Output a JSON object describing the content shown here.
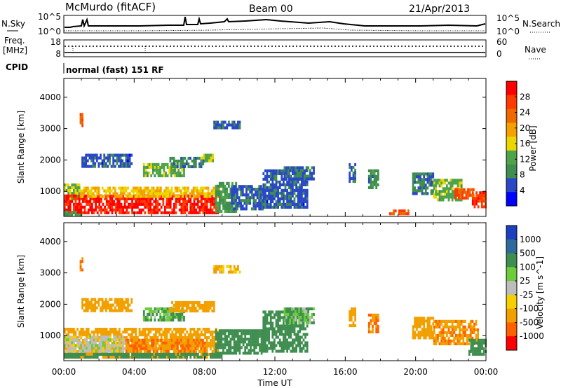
{
  "header": {
    "station": "McMurdo (fitACF)",
    "beam": "Beam 00",
    "date": "21/Apr/2013"
  },
  "noise_panel": {
    "left_label": "N.Sky",
    "right_label": "N.Search",
    "left_ticks": [
      "10^5",
      "10^0"
    ],
    "right_ticks": [
      "10^5",
      "10^0"
    ]
  },
  "freq_panel": {
    "left_label_1": "Freq.",
    "left_label_2": "[MHz]",
    "right_label": "Nave",
    "left_ticks": [
      "18",
      "8"
    ],
    "right_ticks": [
      "60",
      "0"
    ]
  },
  "cpid": {
    "label": "CPID",
    "text": "normal (fast) 151 RF"
  },
  "x_axis": {
    "label": "Time UT",
    "ticks": [
      "00:00",
      "04:00",
      "08:00",
      "12:00",
      "16:00",
      "20:00",
      "00:00"
    ]
  },
  "colors": {
    "power": [
      "#0000ff",
      "#2a47c8",
      "#3f8e4f",
      "#4fa34a",
      "#ecd600",
      "#f3a100",
      "#ee6a00",
      "#ff3a00",
      "#ff0000"
    ],
    "velocity": [
      "#1a3fbf",
      "#2e6b9c",
      "#3f8e4f",
      "#6ccc3c",
      "#bdbdbd",
      "#f4d000",
      "#f2a000",
      "#ff6000",
      "#ff0000"
    ]
  },
  "chart_data": [
    {
      "type": "heatmap",
      "title": "Power",
      "xlabel": "Time UT",
      "ylabel": "Slant Range [km]",
      "x_ticks": [
        "00:00",
        "04:00",
        "08:00",
        "12:00",
        "16:00",
        "20:00",
        "00:00"
      ],
      "xlim_hours": [
        0,
        24
      ],
      "ylim": [
        200,
        4600
      ],
      "y_ticks": [
        1000,
        2000,
        3000,
        4000
      ],
      "colorbar": {
        "label": "Power [dB]",
        "ticks": [
          4,
          8,
          12,
          16,
          20,
          24,
          28
        ],
        "range": [
          0,
          32
        ]
      },
      "regions": [
        {
          "t0": 0.0,
          "t1": 0.9,
          "r0": 800,
          "r1": 1250,
          "value": 14
        },
        {
          "t0": 0.0,
          "t1": 8.8,
          "r0": 350,
          "r1": 900,
          "value": 29
        },
        {
          "t0": 0.9,
          "t1": 8.8,
          "r0": 850,
          "r1": 1150,
          "value": 18
        },
        {
          "t0": 0.0,
          "t1": 1.0,
          "r0": 280,
          "r1": 380,
          "value": 10
        },
        {
          "t0": 8.6,
          "t1": 9.8,
          "r0": 350,
          "r1": 1300,
          "value": 10
        },
        {
          "t0": 9.5,
          "t1": 11.3,
          "r0": 400,
          "r1": 1200,
          "value": 6
        },
        {
          "t0": 11.3,
          "t1": 13.8,
          "r0": 500,
          "r1": 1700,
          "value": 6
        },
        {
          "t0": 12.5,
          "t1": 14.2,
          "r0": 1400,
          "r1": 1800,
          "value": 7
        },
        {
          "t0": 16.2,
          "t1": 16.6,
          "r0": 1300,
          "r1": 1900,
          "value": 7
        },
        {
          "t0": 17.3,
          "t1": 17.9,
          "r0": 1100,
          "r1": 1700,
          "value": 9
        },
        {
          "t0": 18.5,
          "t1": 19.6,
          "r0": 250,
          "r1": 420,
          "value": 26
        },
        {
          "t0": 19.8,
          "t1": 21.0,
          "r0": 900,
          "r1": 1600,
          "value": 8
        },
        {
          "t0": 21.0,
          "t1": 22.6,
          "r0": 700,
          "r1": 1400,
          "value": 13
        },
        {
          "t0": 22.2,
          "t1": 23.3,
          "r0": 800,
          "r1": 1100,
          "value": 25
        },
        {
          "t0": 23.2,
          "t1": 24.0,
          "r0": 500,
          "r1": 1000,
          "value": 27
        },
        {
          "t0": 1.0,
          "t1": 3.8,
          "r0": 1800,
          "r1": 2200,
          "value": 6
        },
        {
          "t0": 4.5,
          "t1": 6.8,
          "r0": 1500,
          "r1": 1900,
          "value": 13
        },
        {
          "t0": 6.0,
          "t1": 8.0,
          "r0": 1800,
          "r1": 2100,
          "value": 8
        },
        {
          "t0": 7.8,
          "t1": 8.5,
          "r0": 2000,
          "r1": 2200,
          "value": 14
        },
        {
          "t0": 8.5,
          "t1": 10.0,
          "r0": 3050,
          "r1": 3250,
          "value": 6
        },
        {
          "t0": 0.9,
          "t1": 1.1,
          "r0": 3100,
          "r1": 3500,
          "value": 24
        }
      ]
    },
    {
      "type": "heatmap",
      "title": "Velocity",
      "xlabel": "Time UT",
      "ylabel": "Slant Range [km]",
      "x_ticks": [
        "00:00",
        "04:00",
        "08:00",
        "12:00",
        "16:00",
        "20:00",
        "00:00"
      ],
      "xlim_hours": [
        0,
        24
      ],
      "ylim": [
        200,
        4600
      ],
      "y_ticks": [
        1000,
        2000,
        3000,
        4000
      ],
      "colorbar": {
        "label": "Velocity [m s^-1]",
        "ticks": [
          "1000",
          "500",
          "100",
          "25",
          "-25",
          "-100",
          "-500",
          "-1000"
        ]
      },
      "regions": [
        {
          "t0": 0.0,
          "t1": 8.8,
          "r0": 350,
          "r1": 1250,
          "value": -200
        },
        {
          "t0": 0.0,
          "t1": 3.5,
          "r0": 500,
          "r1": 1000,
          "value": 0
        },
        {
          "t0": 3.5,
          "t1": 8.0,
          "r0": 500,
          "r1": 900,
          "value": -300
        },
        {
          "t0": 0.0,
          "t1": 9.0,
          "r0": 300,
          "r1": 450,
          "value": 150
        },
        {
          "t0": 8.6,
          "t1": 11.3,
          "r0": 400,
          "r1": 1200,
          "value": 200
        },
        {
          "t0": 11.3,
          "t1": 13.8,
          "r0": 500,
          "r1": 1800,
          "value": 150
        },
        {
          "t0": 12.5,
          "t1": 14.2,
          "r0": 1400,
          "r1": 1900,
          "value": 60
        },
        {
          "t0": 16.2,
          "t1": 16.6,
          "r0": 1300,
          "r1": 1900,
          "value": -150
        },
        {
          "t0": 17.3,
          "t1": 17.9,
          "r0": 1100,
          "r1": 1700,
          "value": -300
        },
        {
          "t0": 19.8,
          "t1": 21.0,
          "r0": 900,
          "r1": 1600,
          "value": -200
        },
        {
          "t0": 21.0,
          "t1": 23.5,
          "r0": 700,
          "r1": 1500,
          "value": -250
        },
        {
          "t0": 23.0,
          "t1": 24.0,
          "r0": 400,
          "r1": 900,
          "value": 150
        },
        {
          "t0": 1.0,
          "t1": 3.8,
          "r0": 1800,
          "r1": 2200,
          "value": -150
        },
        {
          "t0": 4.5,
          "t1": 6.8,
          "r0": 1500,
          "r1": 1900,
          "value": 60
        },
        {
          "t0": 6.0,
          "t1": 8.5,
          "r0": 1800,
          "r1": 2100,
          "value": -120
        },
        {
          "t0": 8.5,
          "t1": 10.0,
          "r0": 3050,
          "r1": 3250,
          "value": -60
        },
        {
          "t0": 0.9,
          "t1": 1.1,
          "r0": 3100,
          "r1": 3500,
          "value": -400
        }
      ]
    }
  ]
}
